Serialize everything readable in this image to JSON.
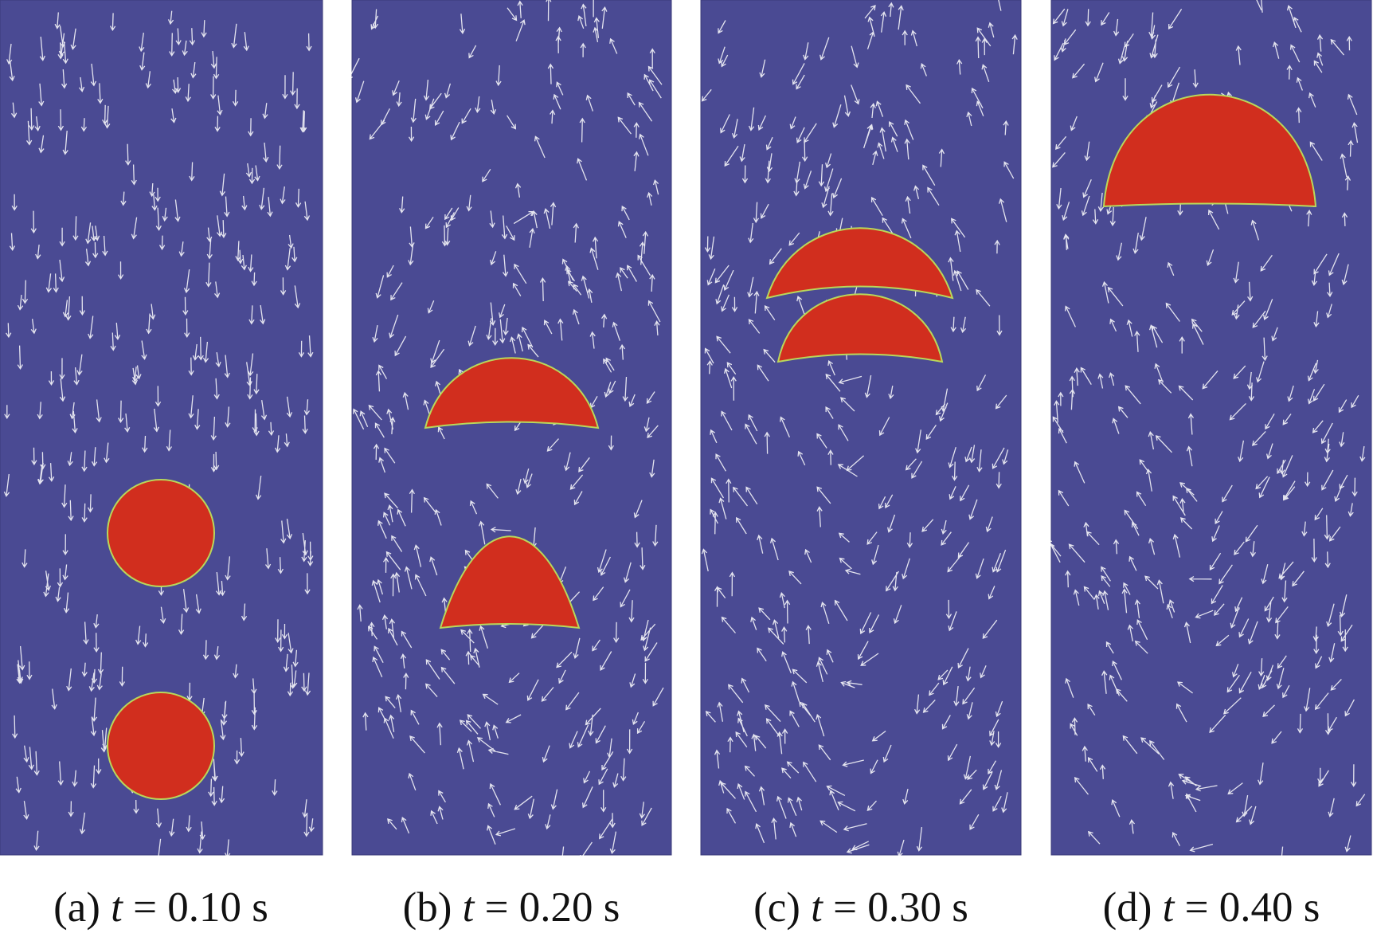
{
  "panels": [
    {
      "letter": "(a)",
      "symbol": "t",
      "time": "= 0.10 s"
    },
    {
      "letter": "(b)",
      "symbol": "t",
      "time": "= 0.20 s"
    },
    {
      "letter": "(c)",
      "symbol": "t",
      "time": "= 0.30 s"
    },
    {
      "letter": "(d)",
      "symbol": "t",
      "time": "= 0.40 s"
    }
  ]
}
